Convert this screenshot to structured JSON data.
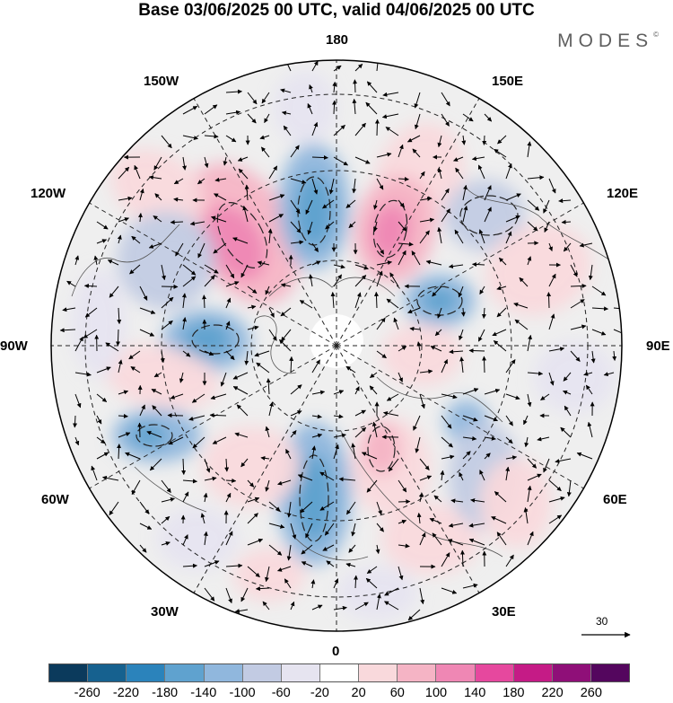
{
  "header": {
    "title": "Base 03/06/2025 00 UTC, valid 04/06/2025 00 UTC",
    "brand": "MODES",
    "brand_mark": "©"
  },
  "map": {
    "projection": "north-polar-stereographic",
    "longitude_labels": {
      "top": "180",
      "bottom": "0",
      "left": "90W",
      "right": "90E",
      "upper_left_1": "150W",
      "upper_left_2": "120W",
      "upper_right_1": "150E",
      "upper_right_2": "120E",
      "lower_left_1": "60W",
      "lower_left_2": "30W",
      "lower_right_1": "60E",
      "lower_right_2": "30E"
    },
    "background_field": "#efefef",
    "grid": "dashed"
  },
  "wind_reference": {
    "label": "30"
  },
  "colorbar": {
    "colors": [
      "#0b3a5c",
      "#16618f",
      "#2b83bb",
      "#5fa2cf",
      "#90b7dd",
      "#c2cbe3",
      "#e6e4f0",
      "#ffffff",
      "#f9d9dc",
      "#f5b4c5",
      "#ef87b4",
      "#e6489e",
      "#c51b86",
      "#8f0f78",
      "#54065e"
    ],
    "ticks": [
      "-260",
      "-220",
      "-180",
      "-140",
      "-100",
      "-60",
      "-20",
      "20",
      "60",
      "100",
      "140",
      "180",
      "220",
      "260"
    ]
  }
}
